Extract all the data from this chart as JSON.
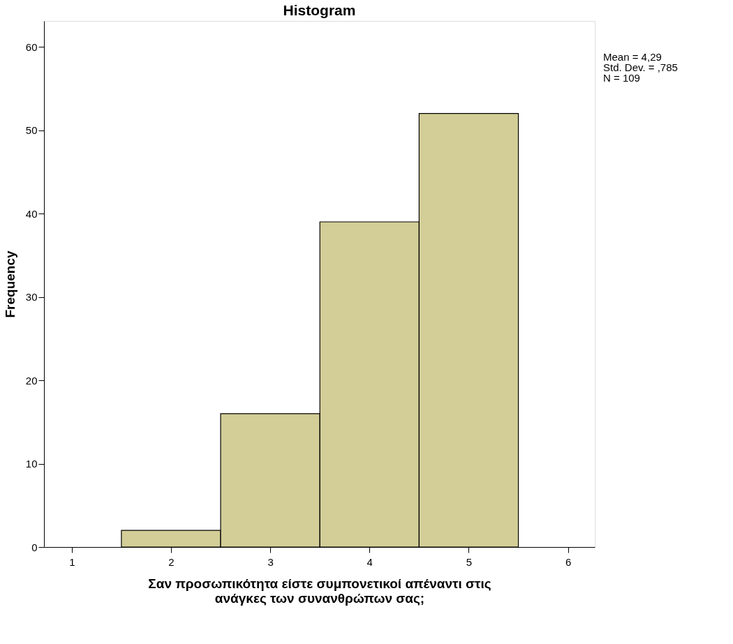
{
  "chart_data": {
    "type": "histogram",
    "title": "Histogram",
    "xlabel": "Σαν προσωπικότητα είστε συμπονετικοί απέναντι στις ανάγκες των συνανθρώπων σας;",
    "ylabel": "Frequency",
    "bins": [
      1.5,
      2.5,
      3.5,
      4.5,
      5.5
    ],
    "values": [
      2,
      16,
      39,
      52
    ],
    "color": "#d3ce97",
    "xlim": [
      0.72,
      6.27
    ],
    "xticks": [
      1,
      2,
      3,
      4,
      5,
      6
    ],
    "ylim": [
      0,
      63.1
    ],
    "yticks": [
      0,
      10,
      20,
      30,
      40,
      50,
      60
    ],
    "grid": false,
    "annotations": [
      "Mean = 4,29",
      "Std. Dev. = ,785",
      "N = 109"
    ]
  }
}
